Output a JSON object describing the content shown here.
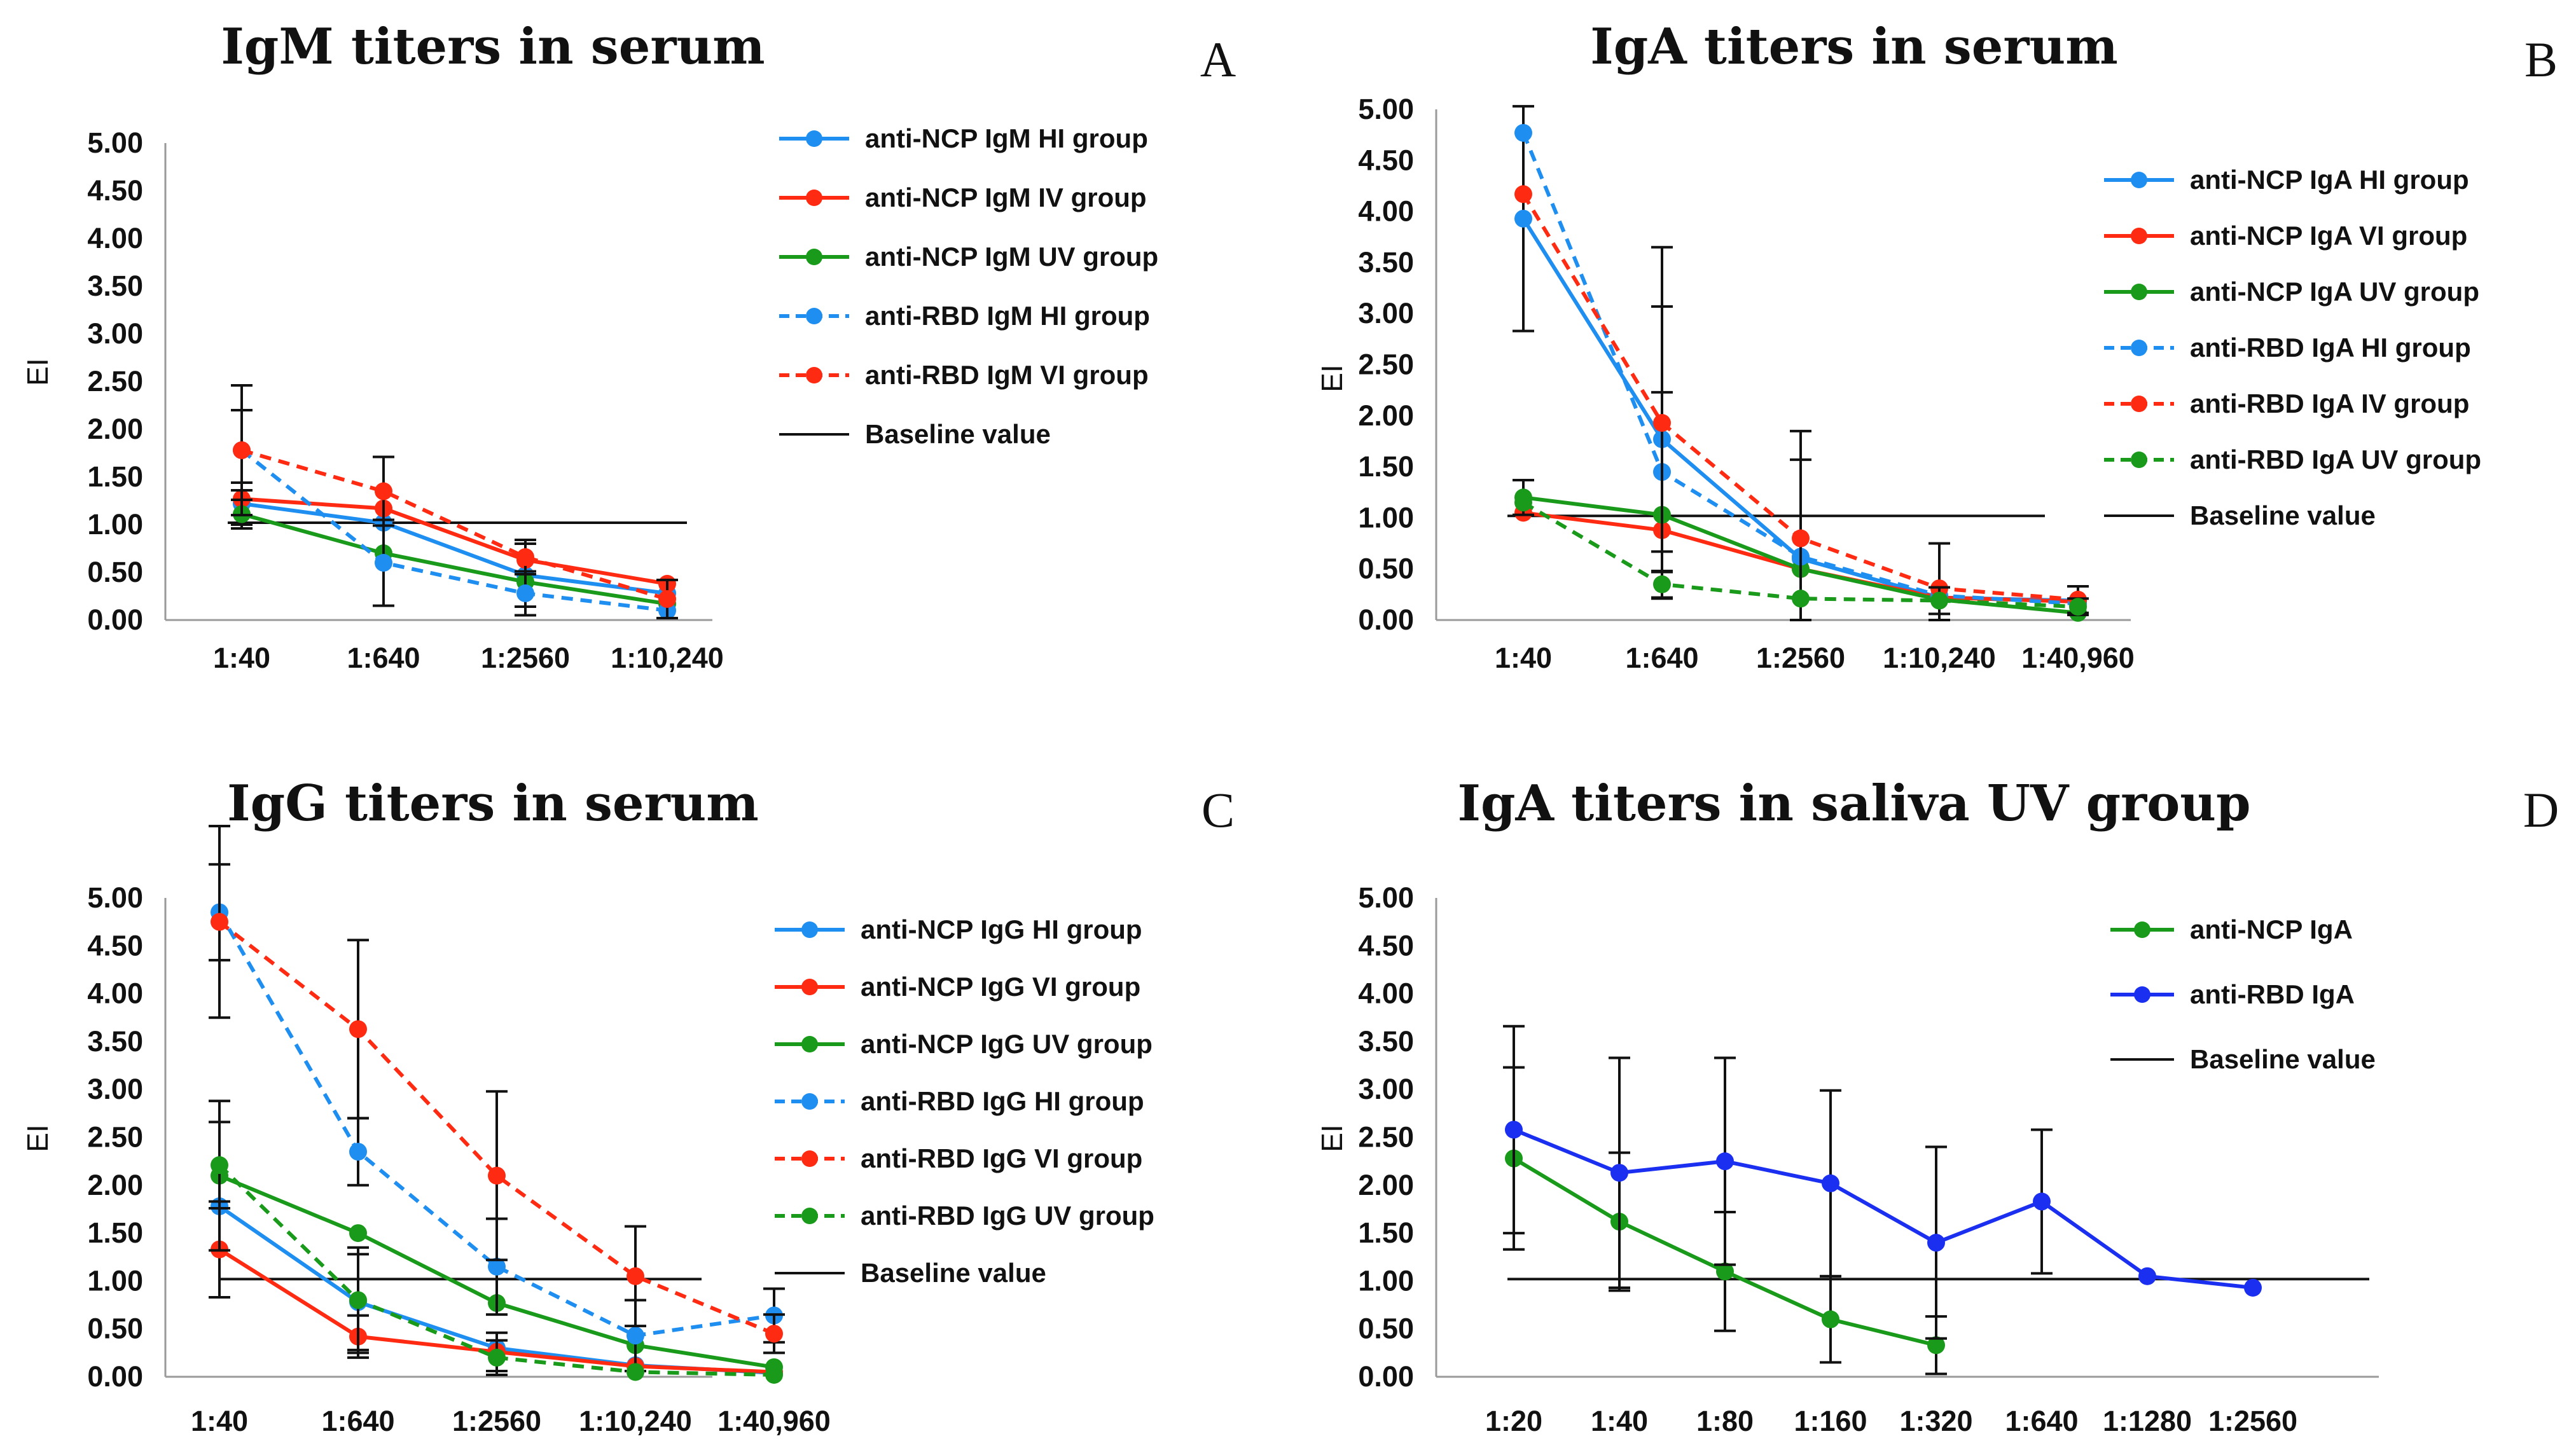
{
  "chart_data": [
    {
      "panel": "A",
      "type": "line",
      "title": "IgM titers in serum",
      "xlabel": "",
      "ylabel": "EI",
      "ylim": [
        0,
        5
      ],
      "yticks": [
        "5.00",
        "4.50",
        "4.00",
        "3.50",
        "3.00",
        "2.50",
        "2.00",
        "1.50",
        "1.00",
        "0.50",
        "0.00"
      ],
      "categories": [
        "1:40",
        "1:640",
        "1:2560",
        "1:10,240"
      ],
      "baseline": {
        "name": "Baseline value",
        "value": 1.02
      },
      "series": [
        {
          "name": "anti-NCP IgM  HI group",
          "color": "#1f8ef1",
          "dashed": false,
          "values": [
            1.22,
            1.02,
            0.47,
            0.28
          ],
          "errors": [
            0.22,
            0,
            0.33,
            0
          ]
        },
        {
          "name": "anti-NCP IgM IV group",
          "color": "#ff2a12",
          "dashed": false,
          "values": [
            1.27,
            1.17,
            0.63,
            0.38
          ],
          "errors": [
            0,
            0,
            0,
            0
          ]
        },
        {
          "name": "anti-NCP IgM UV group",
          "color": "#1a9a1a",
          "dashed": false,
          "values": [
            1.11,
            0.7,
            0.4,
            0.17
          ],
          "errors": [
            0.15,
            0,
            0,
            0
          ]
        },
        {
          "name": "anti-RBD IgM HI group",
          "color": "#1f8ef1",
          "dashed": true,
          "values": [
            1.78,
            0.6,
            0.28,
            0.1
          ],
          "errors": [
            0.42,
            0.45,
            0.23,
            0
          ]
        },
        {
          "name": "anti-RBD IgM VI group",
          "color": "#ff2a12",
          "dashed": true,
          "values": [
            1.78,
            1.35,
            0.66,
            0.22
          ],
          "errors": [
            0.68,
            0.36,
            0.18,
            0.2
          ]
        }
      ]
    },
    {
      "panel": "B",
      "type": "line",
      "title": "IgA titers in serum",
      "xlabel": "",
      "ylabel": "EI",
      "ylim": [
        0,
        5
      ],
      "yticks": [
        "5.00",
        "4.50",
        "4.00",
        "3.50",
        "3.00",
        "2.50",
        "2.00",
        "1.50",
        "1.00",
        "0.50",
        "0.00"
      ],
      "categories": [
        "1:40",
        "1:640",
        "1:2560",
        "1:10,240",
        "1:40,960"
      ],
      "baseline": {
        "name": "Baseline value",
        "value": 1.02
      },
      "series": [
        {
          "name": "anti-NCP IgA HI group",
          "color": "#1f8ef1",
          "dashed": false,
          "values": [
            3.93,
            1.77,
            0.6,
            0.22,
            0.19
          ],
          "errors": [
            1.1,
            1.3,
            0.97,
            0,
            0
          ]
        },
        {
          "name": "anti-NCP IgA VI group",
          "color": "#ff2a12",
          "dashed": false,
          "values": [
            1.05,
            0.88,
            0.5,
            0.22,
            0.18
          ],
          "errors": [
            0,
            0,
            0,
            0,
            0
          ]
        },
        {
          "name": "anti-NCP IgA UV group",
          "color": "#1a9a1a",
          "dashed": false,
          "values": [
            1.2,
            1.03,
            0.5,
            0.2,
            0.07
          ],
          "errors": [
            0.17,
            0,
            0,
            0,
            0
          ]
        },
        {
          "name": "anti-RBD IgA HI group",
          "color": "#1f8ef1",
          "dashed": true,
          "values": [
            4.77,
            1.45,
            0.62,
            0.24,
            0.16
          ],
          "errors": [
            0,
            0.78,
            0,
            0,
            0
          ]
        },
        {
          "name": "anti-RBD IgA IV group",
          "color": "#ff2a12",
          "dashed": true,
          "values": [
            4.17,
            1.93,
            0.8,
            0.31,
            0.2
          ],
          "errors": [
            0,
            1.72,
            1.05,
            0.44,
            0.13
          ]
        },
        {
          "name": "anti-RBD IgA UV group",
          "color": "#1a9a1a",
          "dashed": true,
          "values": [
            1.15,
            0.35,
            0.21,
            0.19,
            0.13
          ],
          "errors": [
            0,
            0.13,
            0,
            0.13,
            0.08
          ]
        }
      ]
    },
    {
      "panel": "C",
      "type": "line",
      "title": "IgG titers in serum",
      "xlabel": "",
      "ylabel": "EI",
      "ylim": [
        0,
        5
      ],
      "yticks": [
        "5.00",
        "4.50",
        "4.00",
        "3.50",
        "3.00",
        "2.50",
        "2.00",
        "1.50",
        "1.00",
        "0.50",
        "0.00"
      ],
      "categories": [
        "1:40",
        "1:640",
        "1:2560",
        "1:10,240",
        "1:40,960"
      ],
      "baseline": {
        "name": "Baseline value",
        "value": 1.02
      },
      "series": [
        {
          "name": "anti-NCP IgG HI group",
          "color": "#1f8ef1",
          "dashed": false,
          "values": [
            1.78,
            0.78,
            0.3,
            0.12,
            0.04
          ],
          "errors": [
            0,
            0.5,
            0,
            0,
            0
          ]
        },
        {
          "name": "anti-NCP IgG VI group",
          "color": "#ff2a12",
          "dashed": false,
          "values": [
            1.33,
            0.42,
            0.26,
            0.11,
            0.05
          ],
          "errors": [
            0.5,
            0.22,
            0.2,
            0,
            0
          ]
        },
        {
          "name": "anti-NCP IgG UV group",
          "color": "#1a9a1a",
          "dashed": false,
          "values": [
            2.1,
            1.5,
            0.77,
            0.33,
            0.1
          ],
          "errors": [
            0.78,
            0,
            0,
            0,
            0
          ]
        },
        {
          "name": "anti-RBD IgG  HI group",
          "color": "#1f8ef1",
          "dashed": true,
          "values": [
            4.85,
            2.35,
            1.15,
            0.43,
            0.64
          ],
          "errors": [
            0.5,
            0.35,
            0.5,
            0.37,
            0.28
          ]
        },
        {
          "name": "anti-RBD IgG  VI group",
          "color": "#ff2a12",
          "dashed": true,
          "values": [
            4.75,
            3.63,
            2.1,
            1.05,
            0.45
          ],
          "errors": [
            1.0,
            0.93,
            0.88,
            0.52,
            0.2
          ]
        },
        {
          "name": "anti-RBD IgG  UV group",
          "color": "#1a9a1a",
          "dashed": true,
          "values": [
            2.21,
            0.8,
            0.2,
            0.05,
            0.02
          ],
          "errors": [
            0.45,
            0.55,
            0.18,
            0,
            0
          ]
        }
      ]
    },
    {
      "panel": "D",
      "type": "line",
      "title": "IgA titers in saliva UV group",
      "xlabel": "",
      "ylabel": "EI",
      "ylim": [
        0,
        5
      ],
      "yticks": [
        "5.00",
        "4.50",
        "4.00",
        "3.50",
        "3.00",
        "2.50",
        "2.00",
        "1.50",
        "1.00",
        "0.50",
        "0.00"
      ],
      "categories": [
        "1:20",
        "1:40",
        "1:80",
        "1:160",
        "1:320",
        "1:640",
        "1:1280",
        "1:2560"
      ],
      "baseline": {
        "name": "Baseline value",
        "value": 1.02
      },
      "series": [
        {
          "name": "anti-NCP IgA",
          "color": "#1a9a1a",
          "dashed": false,
          "values": [
            2.28,
            1.62,
            1.1,
            0.6,
            0.33,
            null,
            null,
            null
          ],
          "errors": [
            0.95,
            0.72,
            0.62,
            0.45,
            0.3,
            null,
            null,
            null
          ]
        },
        {
          "name": "anti-RBD IgA",
          "color": "#1b2ff0",
          "dashed": false,
          "values": [
            2.58,
            2.13,
            2.25,
            2.02,
            1.4,
            1.83,
            1.05,
            0.93
          ],
          "errors": [
            1.08,
            1.2,
            1.08,
            0.97,
            1.0,
            0.75,
            0,
            0
          ]
        }
      ]
    }
  ],
  "panel_letters": [
    "A",
    "B",
    "C",
    "D"
  ]
}
